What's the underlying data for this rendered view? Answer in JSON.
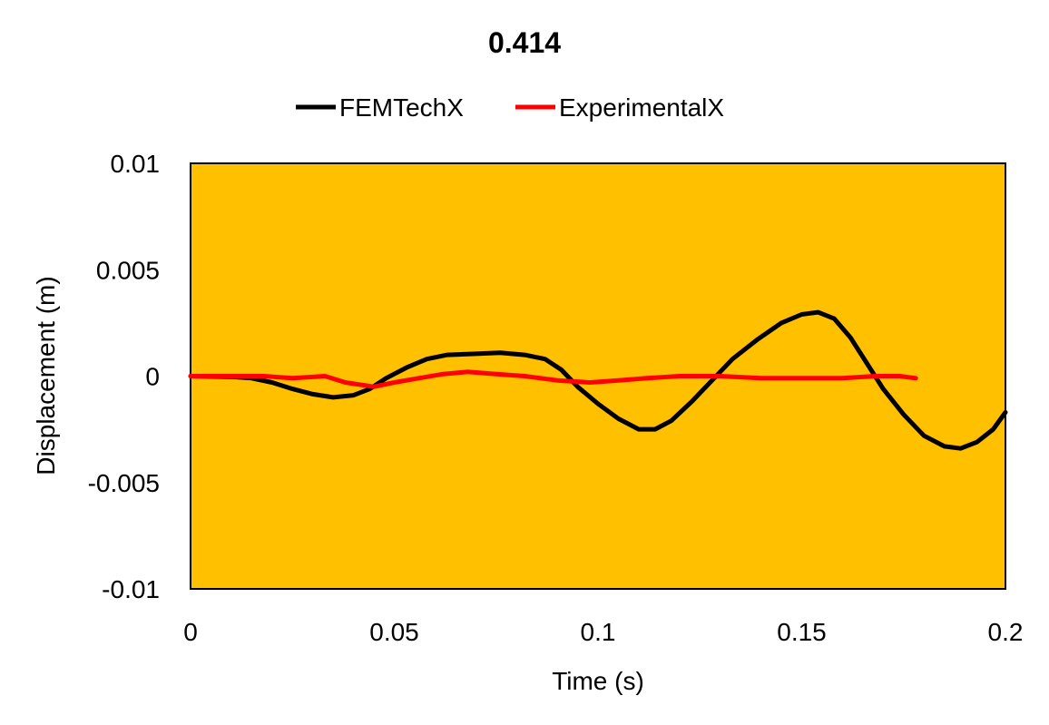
{
  "chart_data": {
    "type": "line",
    "title": "0.414",
    "xlabel": "Time (s)",
    "ylabel": "Displacement (m)",
    "xlim": [
      0,
      0.2
    ],
    "ylim": [
      -0.01,
      0.01
    ],
    "xticks": [
      0,
      0.05,
      0.1,
      0.15,
      0.2
    ],
    "xtick_labels": [
      "0",
      "0.05",
      "0.1",
      "0.15",
      "0.2"
    ],
    "yticks": [
      0.01,
      0.005,
      0,
      -0.005,
      -0.01
    ],
    "ytick_labels": [
      "0.01",
      "0.005",
      "0",
      "-0.005",
      "-0.01"
    ],
    "grid": false,
    "legend_position": "top",
    "plot_background": "#FFC000",
    "series": [
      {
        "name": "FEMTechX",
        "color": "#000000",
        "points": [
          [
            0,
            0
          ],
          [
            0.01,
            -3e-05
          ],
          [
            0.015,
            -0.0001
          ],
          [
            0.02,
            -0.0003
          ],
          [
            0.025,
            -0.0006
          ],
          [
            0.03,
            -0.00085
          ],
          [
            0.035,
            -0.001
          ],
          [
            0.04,
            -0.0009
          ],
          [
            0.044,
            -0.0006
          ],
          [
            0.048,
            -0.0001
          ],
          [
            0.053,
            0.0004
          ],
          [
            0.058,
            0.0008
          ],
          [
            0.063,
            0.001
          ],
          [
            0.07,
            0.00105
          ],
          [
            0.076,
            0.0011
          ],
          [
            0.082,
            0.001
          ],
          [
            0.087,
            0.0008
          ],
          [
            0.091,
            0.0003
          ],
          [
            0.095,
            -0.0005
          ],
          [
            0.1,
            -0.0013
          ],
          [
            0.105,
            -0.002
          ],
          [
            0.11,
            -0.0025
          ],
          [
            0.114,
            -0.0025
          ],
          [
            0.118,
            -0.0021
          ],
          [
            0.123,
            -0.0012
          ],
          [
            0.128,
            -0.0002
          ],
          [
            0.133,
            0.0008
          ],
          [
            0.139,
            0.0017
          ],
          [
            0.145,
            0.0025
          ],
          [
            0.15,
            0.0029
          ],
          [
            0.154,
            0.003
          ],
          [
            0.158,
            0.0027
          ],
          [
            0.162,
            0.0018
          ],
          [
            0.166,
            0.0006
          ],
          [
            0.17,
            -0.0006
          ],
          [
            0.175,
            -0.0018
          ],
          [
            0.18,
            -0.0028
          ],
          [
            0.185,
            -0.0033
          ],
          [
            0.189,
            -0.0034
          ],
          [
            0.193,
            -0.0031
          ],
          [
            0.197,
            -0.0025
          ],
          [
            0.2,
            -0.0017
          ]
        ]
      },
      {
        "name": "ExperimentalX",
        "color": "#FF0000",
        "points": [
          [
            0,
            0
          ],
          [
            0.01,
            0
          ],
          [
            0.018,
            0
          ],
          [
            0.025,
            -0.0001
          ],
          [
            0.033,
            0
          ],
          [
            0.038,
            -0.0003
          ],
          [
            0.045,
            -0.0005
          ],
          [
            0.05,
            -0.0003
          ],
          [
            0.056,
            -0.0001
          ],
          [
            0.062,
            0.0001
          ],
          [
            0.068,
            0.0002
          ],
          [
            0.075,
            0.0001
          ],
          [
            0.082,
            0
          ],
          [
            0.09,
            -0.0002
          ],
          [
            0.098,
            -0.0003
          ],
          [
            0.105,
            -0.0002
          ],
          [
            0.112,
            -0.0001
          ],
          [
            0.12,
            0
          ],
          [
            0.13,
            0
          ],
          [
            0.14,
            -0.0001
          ],
          [
            0.15,
            -0.0001
          ],
          [
            0.16,
            -0.0001
          ],
          [
            0.168,
            0
          ],
          [
            0.174,
            0
          ],
          [
            0.178,
            -0.0001
          ]
        ]
      }
    ]
  }
}
